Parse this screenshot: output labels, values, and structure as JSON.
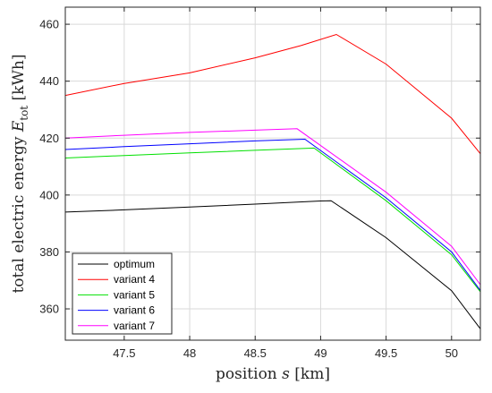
{
  "chart_data": {
    "type": "line",
    "xlabel": {
      "main": "position ",
      "var": "s",
      "unit": " [km]"
    },
    "ylabel": {
      "main": "total electric energy ",
      "var": "E",
      "sub": "tot",
      "unit": " [kWh]"
    },
    "xlim": [
      47.05,
      50.22
    ],
    "ylim": [
      349,
      466
    ],
    "xticks": [
      47.5,
      48,
      48.5,
      49,
      49.5,
      50
    ],
    "xtick_labels": [
      "47.5",
      "48",
      "48.5",
      "49",
      "49.5",
      "50"
    ],
    "yticks": [
      360,
      380,
      400,
      420,
      440,
      460
    ],
    "ytick_labels": [
      "360",
      "380",
      "400",
      "420",
      "440",
      "460"
    ],
    "grid": true,
    "legend_position": "bottom-left",
    "series": [
      {
        "name": "optimum",
        "color": "#000000",
        "x": [
          47.05,
          47.5,
          48.0,
          48.5,
          49.0,
          49.08,
          49.5,
          50.0,
          50.22
        ],
        "y": [
          394,
          394.8,
          395.8,
          396.8,
          397.9,
          398,
          385,
          366.4,
          353
        ]
      },
      {
        "name": "variant 4",
        "color": "#ff0000",
        "x": [
          47.05,
          47.5,
          48.0,
          48.5,
          48.85,
          49.12,
          49.5,
          50.0,
          50.22
        ],
        "y": [
          435,
          439.2,
          442.9,
          448.2,
          452.5,
          456.4,
          446,
          427,
          414.5
        ]
      },
      {
        "name": "variant 5",
        "color": "#00e000",
        "x": [
          47.05,
          47.5,
          48.0,
          48.5,
          48.95,
          49.5,
          50.0,
          50.22
        ],
        "y": [
          413,
          413.9,
          414.8,
          415.7,
          416.5,
          398,
          379,
          366
        ]
      },
      {
        "name": "variant 6",
        "color": "#0000ff",
        "x": [
          47.05,
          47.5,
          48.0,
          48.5,
          48.88,
          49.5,
          50.0,
          50.22
        ],
        "y": [
          416,
          417,
          418,
          419,
          419.6,
          399,
          380,
          366.5
        ]
      },
      {
        "name": "variant 7",
        "color": "#ff00ff",
        "x": [
          47.05,
          47.5,
          48.0,
          48.5,
          48.82,
          49.5,
          50.0,
          50.22
        ],
        "y": [
          420,
          421,
          422,
          422.8,
          423.3,
          401,
          382,
          368.5
        ]
      }
    ]
  }
}
